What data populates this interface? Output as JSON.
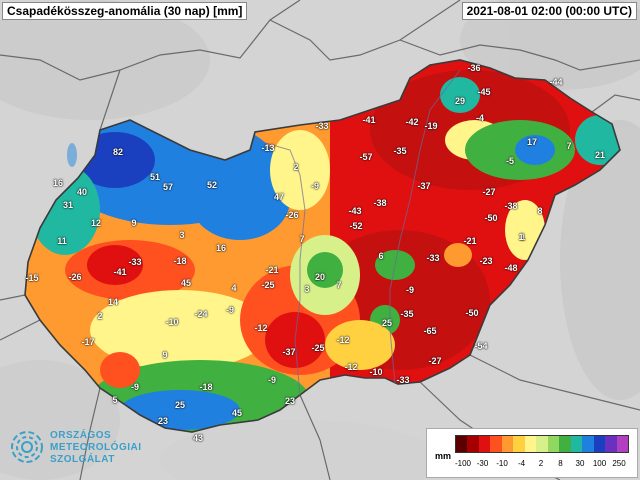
{
  "header": {
    "title": "Csapadékösszeg-anomália (30 nap) [mm]",
    "timestamp": "2021-08-01 02:00 (00:00 UTC)"
  },
  "logo": {
    "line1": "ORSZÁGOS",
    "line2": "METEOROLÓGIAI",
    "line3": "SZOLGÁLAT",
    "color": "#3aa0c8"
  },
  "legend": {
    "unit": "mm",
    "colors": [
      "#5a0000",
      "#a50000",
      "#e01010",
      "#ff5020",
      "#ff9a30",
      "#ffd040",
      "#fff58a",
      "#d8f08a",
      "#90d860",
      "#40b040",
      "#20b8a0",
      "#2080e0",
      "#1a40c0",
      "#6a30c0",
      "#b040c0"
    ],
    "ticks": [
      "-100",
      "-30",
      "-10",
      "-4",
      "2",
      "8",
      "30",
      "100",
      "250"
    ]
  },
  "station_values": [
    {
      "v": "82",
      "c": "#1a40c0"
    },
    {
      "v": "51",
      "c": "#1a40c0"
    },
    {
      "v": "57",
      "c": "#1a40c0"
    },
    {
      "v": "52",
      "c": "#2080e0"
    },
    {
      "v": "16",
      "c": "#20b8a0"
    },
    {
      "v": "40",
      "c": "#2080e0"
    },
    {
      "v": "31",
      "c": "#2080e0"
    },
    {
      "v": "12",
      "c": "#20b8a0"
    },
    {
      "v": "9",
      "c": "#40b040"
    },
    {
      "v": "11",
      "c": "#40b040"
    },
    {
      "v": "-15",
      "c": "#ff5020"
    },
    {
      "v": "-26",
      "c": "#e01010"
    },
    {
      "v": "-41",
      "c": "#a50000"
    },
    {
      "v": "-33",
      "c": "#e01010"
    },
    {
      "v": "3",
      "c": "#90d860"
    },
    {
      "v": "-18",
      "c": "#ff5020"
    },
    {
      "v": "16",
      "c": "#2080e0"
    },
    {
      "v": "45",
      "c": "#1a40c0"
    },
    {
      "v": "14",
      "c": "#20b8a0"
    },
    {
      "v": "2",
      "c": "#d8f08a"
    },
    {
      "v": "-17",
      "c": "#ff9a30"
    },
    {
      "v": "-10",
      "c": "#ff9a30"
    },
    {
      "v": "-24",
      "c": "#e01010"
    },
    {
      "v": "-9",
      "c": "#ffd040"
    },
    {
      "v": "4",
      "c": "#90d860"
    },
    {
      "v": "9",
      "c": "#40b040"
    },
    {
      "v": "-9",
      "c": "#ff9a30"
    },
    {
      "v": "-18",
      "c": "#ff5020"
    },
    {
      "v": "5",
      "c": "#90d860"
    },
    {
      "v": "25",
      "c": "#2080e0"
    },
    {
      "v": "23",
      "c": "#2080e0"
    },
    {
      "v": "45",
      "c": "#1a40c0"
    },
    {
      "v": "43",
      "c": "#2080e0"
    },
    {
      "v": "-13",
      "c": "#ff5020"
    },
    {
      "v": "2",
      "c": "#ffd040"
    },
    {
      "v": "-9",
      "c": "#ff9a30"
    },
    {
      "v": "47",
      "c": "#2080e0"
    },
    {
      "v": "-26",
      "c": "#e01010"
    },
    {
      "v": "7",
      "c": "#d8f08a"
    },
    {
      "v": "-21",
      "c": "#ff5020"
    },
    {
      "v": "-25",
      "c": "#ff5020"
    },
    {
      "v": "3",
      "c": "#fff58a"
    },
    {
      "v": "20",
      "c": "#40b040"
    },
    {
      "v": "7",
      "c": "#40b040"
    },
    {
      "v": "-12",
      "c": "#ff5020"
    },
    {
      "v": "-37",
      "c": "#a50000"
    },
    {
      "v": "-25",
      "c": "#e01010"
    },
    {
      "v": "-12",
      "c": "#ff9a30"
    },
    {
      "v": "-9",
      "c": "#ffd040"
    },
    {
      "v": "23",
      "c": "#40b040"
    },
    {
      "v": "-12",
      "c": "#ff9a30"
    },
    {
      "v": "-10",
      "c": "#ffd040"
    },
    {
      "v": "-33",
      "c": "#e01010"
    },
    {
      "v": "-33",
      "c": "#e01010"
    },
    {
      "v": "-41",
      "c": "#a50000"
    },
    {
      "v": "-57",
      "c": "#a50000"
    },
    {
      "v": "-35",
      "c": "#e01010"
    },
    {
      "v": "-42",
      "c": "#a50000"
    },
    {
      "v": "-19",
      "c": "#ff5020"
    },
    {
      "v": "-43",
      "c": "#a50000"
    },
    {
      "v": "-52",
      "c": "#a50000"
    },
    {
      "v": "-38",
      "c": "#e01010"
    },
    {
      "v": "-37",
      "c": "#a50000"
    },
    {
      "v": "6",
      "c": "#40b040"
    },
    {
      "v": "-33",
      "c": "#e01010"
    },
    {
      "v": "-9",
      "c": "#ff9a30"
    },
    {
      "v": "25",
      "c": "#40b040"
    },
    {
      "v": "-35",
      "c": "#e01010"
    },
    {
      "v": "-65",
      "c": "#a50000"
    },
    {
      "v": "-27",
      "c": "#e01010"
    },
    {
      "v": "1",
      "c": "#e01010"
    },
    {
      "v": "-36",
      "c": "#e01010"
    },
    {
      "v": "29",
      "c": "#20b8a0"
    },
    {
      "v": "-45",
      "c": "#a50000"
    },
    {
      "v": "-44",
      "c": "#a50000"
    },
    {
      "v": "-4",
      "c": "#fff58a"
    },
    {
      "v": "17",
      "c": "#2080e0"
    },
    {
      "v": "-5",
      "c": "#40b040"
    },
    {
      "v": "7",
      "c": "#40b040"
    },
    {
      "v": "21",
      "c": "#20b8a0"
    },
    {
      "v": "-27",
      "c": "#e01010"
    },
    {
      "v": "-50",
      "c": "#a50000"
    },
    {
      "v": "-38",
      "c": "#e01010"
    },
    {
      "v": "8",
      "c": "#90d860"
    },
    {
      "v": "-21",
      "c": "#ff5020"
    },
    {
      "v": "-23",
      "c": "#e01010"
    },
    {
      "v": "1",
      "c": "#fff58a"
    },
    {
      "v": "-48",
      "c": "#a50000"
    },
    {
      "v": "-50",
      "c": "#a50000"
    },
    {
      "v": "-54",
      "c": "#a50000"
    }
  ]
}
